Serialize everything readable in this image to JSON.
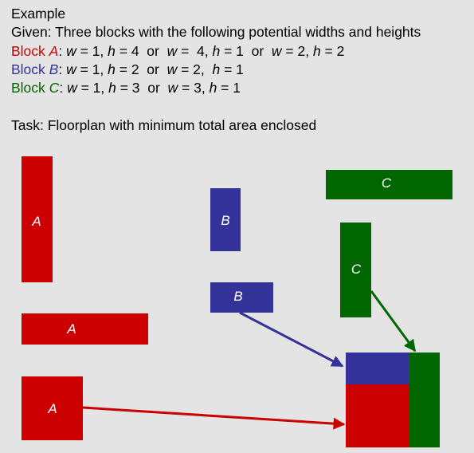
{
  "title": "Example",
  "given": "Given: Three blocks with the following potential widths and heights",
  "block_word": "Block",
  "blocks": {
    "a": {
      "letter": "A",
      "color": "#cc0000",
      "sep": ":",
      "w1": "w",
      "eq1": " = 1, ",
      "h1": "h",
      "eq2": " = 4  or  ",
      "w2": "w",
      "eq3": " =  4, ",
      "h2": "h",
      "eq4": " = 1  or  ",
      "w3": "w",
      "eq5": " = 2, ",
      "h3": "h",
      "eq6": " = 2"
    },
    "b": {
      "letter": "B",
      "color": "#333399",
      "sep": ":",
      "w1": "w",
      "eq1": " = 1, ",
      "h1": "h",
      "eq2": " = 2  or  ",
      "w2": "w",
      "eq3": " = 2,  ",
      "h2": "h",
      "eq4": " = 1"
    },
    "c": {
      "letter": "C",
      "color": "#006600",
      "sep": ":",
      "w1": "w",
      "eq1": " = 1, ",
      "h1": "h",
      "eq2": " = 3  or  ",
      "w2": "w",
      "eq3": " = 3, ",
      "h2": "h",
      "eq4": " = 1"
    }
  },
  "task": "Task: Floorplan with minimum total area enclosed",
  "labels": {
    "a_tall": "A",
    "a_wide": "A",
    "a_square": "A",
    "b_tall": "B",
    "b_wide": "B",
    "c_wide": "C",
    "c_tall": "C"
  }
}
